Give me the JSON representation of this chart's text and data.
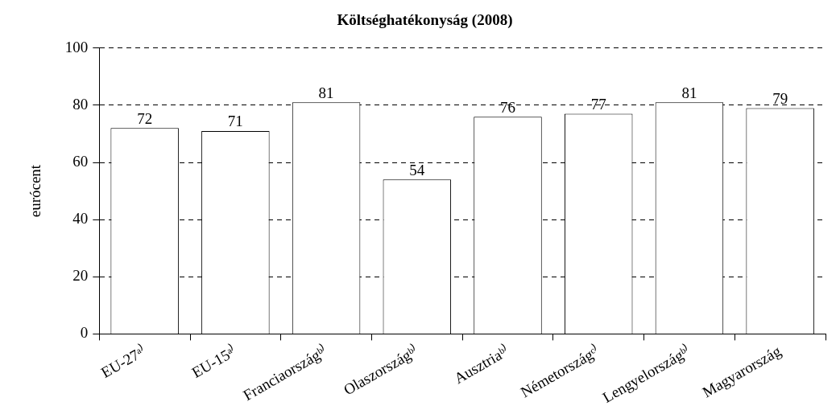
{
  "chart_data": {
    "type": "bar",
    "title": "Költséghatékonyság (2008)",
    "ylabel": "eurócent",
    "categories": [
      "EU-27ᵃ⁾",
      "EU-15ᵃ⁾",
      "Franciaországᵇ⁾",
      "Olaszországᵇ⁾",
      "Ausztriaᵇ⁾",
      "Németországᶜ⁾",
      "Lengyelországᵇ⁾",
      "Magyarország"
    ],
    "values": [
      72,
      71,
      81,
      54,
      76,
      77,
      81,
      79
    ],
    "color": "#ffffff",
    "ylim": [
      0,
      100
    ],
    "yticks": [
      0,
      20,
      40,
      60,
      80,
      100
    ],
    "grid": "y",
    "data_labels": true,
    "legend": false
  }
}
